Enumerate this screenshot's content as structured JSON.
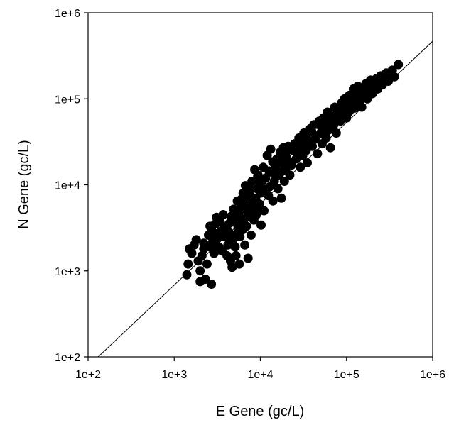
{
  "chart_data": {
    "type": "scatter",
    "title": "",
    "xlabel": "E Gene (gc/L)",
    "ylabel": "N Gene (gc/L)",
    "xscale": "log",
    "yscale": "log",
    "xlim": [
      100,
      1000000
    ],
    "ylim": [
      100,
      1000000
    ],
    "xticks": [
      100,
      1000,
      10000,
      100000,
      1000000
    ],
    "yticks": [
      100,
      1000,
      10000,
      100000,
      1000000
    ],
    "xtick_labels": [
      "1e+2",
      "1e+3",
      "1e+4",
      "1e+5",
      "1e+6"
    ],
    "ytick_labels": [
      "1e+2",
      "1e+3",
      "1e+4",
      "1e+5",
      "1e+6"
    ],
    "grid": false,
    "reference_line": {
      "type": "1:1 line",
      "x": [
        100,
        1000000
      ],
      "y": [
        100,
        1000000
      ]
    },
    "marker_color": "#000000",
    "series": [
      {
        "points": [
          [
            1400,
            900
          ],
          [
            1450,
            1200
          ],
          [
            1500,
            1800
          ],
          [
            1600,
            1600
          ],
          [
            1700,
            2000
          ],
          [
            1800,
            2300
          ],
          [
            1900,
            1300
          ],
          [
            2000,
            1000
          ],
          [
            2000,
            750
          ],
          [
            2100,
            1500
          ],
          [
            2200,
            2100
          ],
          [
            2300,
            800
          ],
          [
            2400,
            1200
          ],
          [
            2500,
            2600
          ],
          [
            2600,
            1900
          ],
          [
            2700,
            700
          ],
          [
            2700,
            3000
          ],
          [
            2800,
            2200
          ],
          [
            2900,
            1600
          ],
          [
            3000,
            3500
          ],
          [
            3000,
            2700
          ],
          [
            3100,
            4200
          ],
          [
            3200,
            2400
          ],
          [
            3300,
            1900
          ],
          [
            3400,
            3800
          ],
          [
            3500,
            2900
          ],
          [
            3600,
            1700
          ],
          [
            3700,
            4500
          ],
          [
            3800,
            3300
          ],
          [
            3900,
            2500
          ],
          [
            4000,
            3100
          ],
          [
            4100,
            1500
          ],
          [
            4200,
            2000
          ],
          [
            4300,
            2800
          ],
          [
            4400,
            3600
          ],
          [
            4500,
            1300
          ],
          [
            4600,
            4300
          ],
          [
            4700,
            1100
          ],
          [
            4800,
            2300
          ],
          [
            4900,
            5200
          ],
          [
            5000,
            3900
          ],
          [
            5100,
            1900
          ],
          [
            5200,
            1500
          ],
          [
            5300,
            2700
          ],
          [
            5400,
            6500
          ],
          [
            5500,
            3300
          ],
          [
            5600,
            4500
          ],
          [
            5700,
            1200
          ],
          [
            5800,
            2500
          ],
          [
            6000,
            5500
          ],
          [
            6200,
            3000
          ],
          [
            6300,
            8000
          ],
          [
            6500,
            4000
          ],
          [
            6600,
            2000
          ],
          [
            6700,
            9800
          ],
          [
            6900,
            3300
          ],
          [
            7000,
            6000
          ],
          [
            7200,
            1400
          ],
          [
            7400,
            4800
          ],
          [
            7600,
            7500
          ],
          [
            7800,
            2600
          ],
          [
            8000,
            11000
          ],
          [
            8200,
            5600
          ],
          [
            8400,
            3900
          ],
          [
            8600,
            15000
          ],
          [
            8800,
            7000
          ],
          [
            9000,
            4500
          ],
          [
            9200,
            9000
          ],
          [
            9400,
            13000
          ],
          [
            9700,
            6000
          ],
          [
            10000,
            8000
          ],
          [
            10200,
            3400
          ],
          [
            10500,
            11000
          ],
          [
            10800,
            16000
          ],
          [
            11000,
            5000
          ],
          [
            11500,
            12000
          ],
          [
            12000,
            22000
          ],
          [
            12400,
            7500
          ],
          [
            12800,
            9500
          ],
          [
            13200,
            26000
          ],
          [
            13600,
            14000
          ],
          [
            14000,
            6500
          ],
          [
            14500,
            11000
          ],
          [
            15000,
            16000
          ],
          [
            15500,
            20000
          ],
          [
            16000,
            9000
          ],
          [
            16500,
            13000
          ],
          [
            17000,
            24000
          ],
          [
            17500,
            7000
          ],
          [
            18000,
            18000
          ],
          [
            18500,
            27000
          ],
          [
            19000,
            11000
          ],
          [
            19500,
            15000
          ],
          [
            20000,
            21000
          ],
          [
            21000,
            28000
          ],
          [
            22000,
            13000
          ],
          [
            23000,
            17000
          ],
          [
            24000,
            25000
          ],
          [
            25000,
            30000
          ],
          [
            26000,
            20000
          ],
          [
            27000,
            23000
          ],
          [
            28000,
            35000
          ],
          [
            29000,
            16000
          ],
          [
            30000,
            27000
          ],
          [
            31000,
            22000
          ],
          [
            32000,
            40000
          ],
          [
            33000,
            30000
          ],
          [
            34000,
            25000
          ],
          [
            35000,
            18000
          ],
          [
            36000,
            33000
          ],
          [
            38000,
            45000
          ],
          [
            40000,
            28000
          ],
          [
            42000,
            50000
          ],
          [
            44000,
            36000
          ],
          [
            46000,
            23000
          ],
          [
            48000,
            55000
          ],
          [
            50000,
            40000
          ],
          [
            52000,
            30000
          ],
          [
            54000,
            60000
          ],
          [
            56000,
            45000
          ],
          [
            58000,
            35000
          ],
          [
            60000,
            70000
          ],
          [
            62000,
            52000
          ],
          [
            65000,
            27000
          ],
          [
            68000,
            62000
          ],
          [
            70000,
            48000
          ],
          [
            73000,
            80000
          ],
          [
            76000,
            40000
          ],
          [
            79000,
            65000
          ],
          [
            82000,
            75000
          ],
          [
            85000,
            55000
          ],
          [
            88000,
            90000
          ],
          [
            91000,
            70000
          ],
          [
            95000,
            100000
          ],
          [
            100000,
            60000
          ],
          [
            104000,
            85000
          ],
          [
            108000,
            110000
          ],
          [
            112000,
            75000
          ],
          [
            116000,
            95000
          ],
          [
            120000,
            130000
          ],
          [
            125000,
            88000
          ],
          [
            130000,
            105000
          ],
          [
            135000,
            140000
          ],
          [
            140000,
            92000
          ],
          [
            145000,
            120000
          ],
          [
            150000,
            80000
          ],
          [
            156000,
            135000
          ],
          [
            162000,
            110000
          ],
          [
            168000,
            150000
          ],
          [
            175000,
            100000
          ],
          [
            182000,
            125000
          ],
          [
            190000,
            165000
          ],
          [
            200000,
            115000
          ],
          [
            210000,
            140000
          ],
          [
            220000,
            170000
          ],
          [
            230000,
            130000
          ],
          [
            240000,
            155000
          ],
          [
            250000,
            185000
          ],
          [
            260000,
            145000
          ],
          [
            275000,
            170000
          ],
          [
            290000,
            200000
          ],
          [
            305000,
            160000
          ],
          [
            320000,
            195000
          ],
          [
            340000,
            215000
          ],
          [
            360000,
            180000
          ],
          [
            400000,
            250000
          ],
          [
            2200,
            1800
          ],
          [
            2600,
            3300
          ],
          [
            3100,
            2000
          ],
          [
            3600,
            2600
          ],
          [
            4100,
            3000
          ],
          [
            4600,
            2400
          ],
          [
            5100,
            4200
          ],
          [
            5600,
            3700
          ],
          [
            6100,
            6900
          ],
          [
            6600,
            5200
          ],
          [
            7100,
            4300
          ],
          [
            7600,
            9000
          ],
          [
            8100,
            6600
          ],
          [
            8700,
            5200
          ],
          [
            9300,
            12500
          ],
          [
            9900,
            10500
          ],
          [
            11200,
            8800
          ],
          [
            12600,
            14500
          ],
          [
            13900,
            18500
          ],
          [
            15300,
            12500
          ],
          [
            16800,
            21000
          ],
          [
            18300,
            14500
          ],
          [
            19800,
            24500
          ],
          [
            21800,
            18500
          ],
          [
            23800,
            27500
          ],
          [
            25800,
            24500
          ],
          [
            28300,
            31000
          ],
          [
            30800,
            26500
          ],
          [
            33300,
            37500
          ],
          [
            36300,
            29000
          ],
          [
            39300,
            42000
          ],
          [
            43300,
            34000
          ],
          [
            47300,
            50000
          ],
          [
            51300,
            39000
          ],
          [
            56300,
            52000
          ],
          [
            61300,
            43000
          ],
          [
            66300,
            58000
          ],
          [
            71300,
            50000
          ],
          [
            77300,
            68000
          ],
          [
            83300,
            56000
          ],
          [
            90300,
            72000
          ],
          [
            98300,
            82000
          ],
          [
            106000,
            70000
          ],
          [
            115000,
            96000
          ],
          [
            125000,
            78000
          ],
          [
            136000,
            116000
          ],
          [
            148000,
            100000
          ],
          [
            160000,
            128000
          ],
          [
            174000,
            118000
          ],
          [
            189000,
            148000
          ],
          [
            206000,
            128000
          ],
          [
            224000,
            160000
          ]
        ]
      }
    ]
  }
}
